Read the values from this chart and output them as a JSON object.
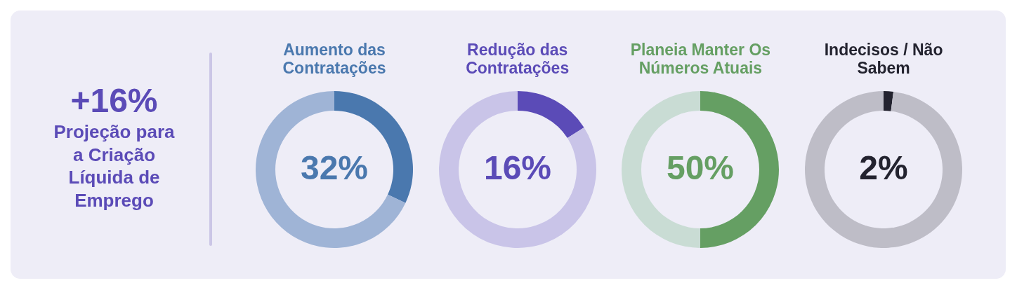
{
  "chart_data": [
    {
      "type": "other",
      "title": "+16%",
      "subtitle": "Projeção para a Criação Líquida de Emprego",
      "color": "#5b4bb7"
    },
    {
      "type": "donut",
      "title": "Aumento das Contratações",
      "categories": [
        null,
        null
      ],
      "values": [
        32,
        68
      ],
      "colors": [
        "#4a78ae",
        "#9fb4d6"
      ],
      "value_labels": [
        "32%",
        null
      ]
    },
    {
      "type": "donut",
      "title": "Redução das Contratações",
      "categories": [
        null,
        null
      ],
      "values": [
        16,
        84
      ],
      "colors": [
        "#5b4bb7",
        "#c9c4e8"
      ],
      "value_labels": [
        "16%",
        null
      ]
    },
    {
      "type": "donut",
      "title": "Planeia Manter Os Números Atuais",
      "categories": [
        null,
        null
      ],
      "values": [
        50,
        50
      ],
      "colors": [
        "#659f63",
        "#c9dcd4"
      ],
      "value_labels": [
        "50%",
        null
      ]
    },
    {
      "type": "donut",
      "title": "Indecisos / Não Sabem",
      "categories": [
        null,
        null
      ],
      "values": [
        2,
        98
      ],
      "colors": [
        "#23232f",
        "#bebdc7"
      ],
      "value_labels": [
        "2%",
        null
      ]
    }
  ]
}
